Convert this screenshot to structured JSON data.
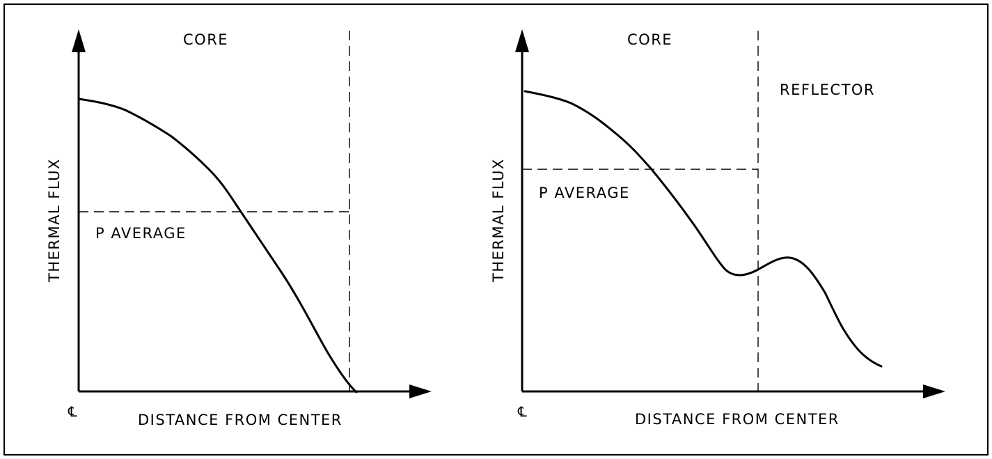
{
  "colors": {
    "ink": "#000000",
    "background": "#ffffff"
  },
  "panels": [
    {
      "region_label": "CORE",
      "y_axis_label": "THERMAL FLUX",
      "x_axis_label": "DISTANCE FROM CENTER",
      "average_label": "P AVERAGE",
      "origin_symbol": "℄",
      "curve_shape": "monotonic decrease to zero at core edge"
    },
    {
      "region_label": "CORE",
      "reflector_label": "REFLECTOR",
      "y_axis_label": "THERMAL FLUX",
      "x_axis_label": "DISTANCE FROM CENTER",
      "average_label": "P AVERAGE",
      "origin_symbol": "℄",
      "curve_shape": "decrease with dip at core boundary, peak in reflector, then decrease"
    }
  ]
}
